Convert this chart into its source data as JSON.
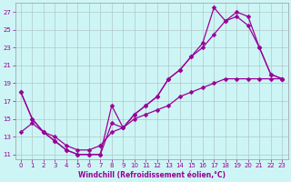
{
  "xlabel": "Windchill (Refroidissement éolien,°C)",
  "bg_color": "#cef5f5",
  "line_color": "#990099",
  "xlim": [
    -0.5,
    23.5
  ],
  "ylim": [
    10.5,
    28
  ],
  "xticks": [
    0,
    1,
    2,
    3,
    4,
    5,
    6,
    7,
    8,
    9,
    10,
    11,
    12,
    13,
    14,
    15,
    16,
    17,
    18,
    19,
    20,
    21,
    22,
    23
  ],
  "yticks": [
    11,
    13,
    15,
    17,
    19,
    21,
    23,
    25,
    27
  ],
  "grid_color": "#b0c8c8",
  "line1_x": [
    0,
    1,
    2,
    3,
    4,
    5,
    6,
    7,
    8,
    9,
    10,
    11,
    12,
    13,
    14,
    15,
    16,
    17,
    18,
    19,
    20,
    21,
    22,
    23
  ],
  "line1_y": [
    18.0,
    15.0,
    13.5,
    12.5,
    11.5,
    11.0,
    11.0,
    11.0,
    14.5,
    14.0,
    15.5,
    16.5,
    17.5,
    19.5,
    20.5,
    22.0,
    23.0,
    24.5,
    26.0,
    27.0,
    26.5,
    23.0,
    20.0,
    19.5
  ],
  "line2_x": [
    0,
    1,
    2,
    3,
    4,
    5,
    6,
    7,
    8,
    9,
    10,
    11,
    12,
    13,
    14,
    15,
    16,
    17,
    18,
    19,
    20,
    21,
    22,
    23
  ],
  "line2_y": [
    18.0,
    15.0,
    13.5,
    12.5,
    11.5,
    11.0,
    11.0,
    11.0,
    16.5,
    14.0,
    15.5,
    16.5,
    17.5,
    19.5,
    20.5,
    22.0,
    23.5,
    27.5,
    26.0,
    26.5,
    25.5,
    23.0,
    20.0,
    19.5
  ],
  "line3_x": [
    0,
    1,
    2,
    3,
    4,
    5,
    6,
    7,
    8,
    9,
    10,
    11,
    12,
    13,
    14,
    15,
    16,
    17,
    18,
    19,
    20,
    21,
    22,
    23
  ],
  "line3_y": [
    13.5,
    14.5,
    13.5,
    13.0,
    12.0,
    11.5,
    11.5,
    12.0,
    13.5,
    14.0,
    15.0,
    15.5,
    16.0,
    16.5,
    17.5,
    18.0,
    18.5,
    19.0,
    19.5,
    19.5,
    19.5,
    19.5,
    19.5,
    19.5
  ]
}
